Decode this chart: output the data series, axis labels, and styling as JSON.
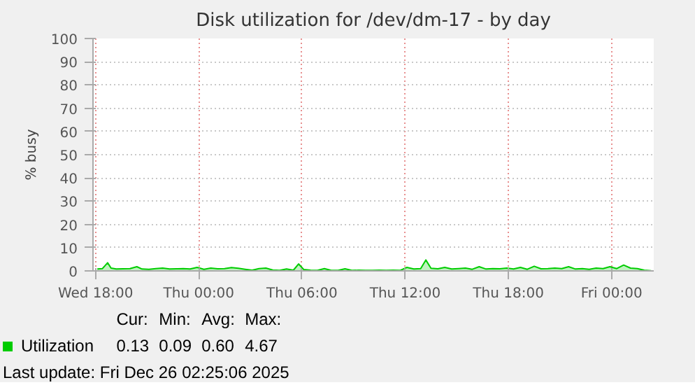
{
  "chart_data": {
    "type": "area",
    "title": "Disk utilization for /dev/dm-17 - by day",
    "ylabel": "% busy",
    "x": [
      "2025-12-24T18:06",
      "2025-12-24T18:24",
      "2025-12-24T18:42",
      "2025-12-24T18:54",
      "2025-12-24T19:12",
      "2025-12-24T19:36",
      "2025-12-24T20:00",
      "2025-12-24T20:24",
      "2025-12-24T20:42",
      "2025-12-24T21:06",
      "2025-12-24T21:30",
      "2025-12-24T21:54",
      "2025-12-24T22:18",
      "2025-12-24T22:42",
      "2025-12-24T23:06",
      "2025-12-24T23:30",
      "2025-12-24T23:54",
      "2025-12-25T00:18",
      "2025-12-25T00:42",
      "2025-12-25T01:06",
      "2025-12-25T01:30",
      "2025-12-25T01:54",
      "2025-12-25T02:18",
      "2025-12-25T02:42",
      "2025-12-25T03:06",
      "2025-12-25T03:30",
      "2025-12-25T03:54",
      "2025-12-25T04:18",
      "2025-12-25T04:42",
      "2025-12-25T05:06",
      "2025-12-25T05:30",
      "2025-12-25T05:48",
      "2025-12-25T06:06",
      "2025-12-25T06:30",
      "2025-12-25T06:54",
      "2025-12-25T07:18",
      "2025-12-25T07:42",
      "2025-12-25T08:06",
      "2025-12-25T08:30",
      "2025-12-25T08:54",
      "2025-12-25T09:18",
      "2025-12-25T09:42",
      "2025-12-25T10:06",
      "2025-12-25T10:30",
      "2025-12-25T10:54",
      "2025-12-25T11:18",
      "2025-12-25T11:42",
      "2025-12-25T12:06",
      "2025-12-25T12:30",
      "2025-12-25T12:54",
      "2025-12-25T13:12",
      "2025-12-25T13:30",
      "2025-12-25T13:54",
      "2025-12-25T14:18",
      "2025-12-25T14:42",
      "2025-12-25T15:06",
      "2025-12-25T15:30",
      "2025-12-25T15:54",
      "2025-12-25T16:18",
      "2025-12-25T16:42",
      "2025-12-25T17:06",
      "2025-12-25T17:30",
      "2025-12-25T17:54",
      "2025-12-25T18:18",
      "2025-12-25T18:42",
      "2025-12-25T19:06",
      "2025-12-25T19:30",
      "2025-12-25T19:54",
      "2025-12-25T20:18",
      "2025-12-25T20:42",
      "2025-12-25T21:06",
      "2025-12-25T21:30",
      "2025-12-25T21:54",
      "2025-12-25T22:18",
      "2025-12-25T22:42",
      "2025-12-25T23:06",
      "2025-12-25T23:30",
      "2025-12-25T23:54",
      "2025-12-26T00:18",
      "2025-12-26T00:42",
      "2025-12-26T01:06",
      "2025-12-26T01:30",
      "2025-12-26T01:54",
      "2025-12-26T02:18"
    ],
    "series": [
      {
        "name": "Utilization",
        "color": "#00cc00",
        "values": [
          0.8,
          1.0,
          3.5,
          1.2,
          0.8,
          0.9,
          1.0,
          1.8,
          0.8,
          0.7,
          1.0,
          1.2,
          0.8,
          0.9,
          1.0,
          0.8,
          1.5,
          0.7,
          1.2,
          0.9,
          1.0,
          1.4,
          1.1,
          0.7,
          0.3,
          1.0,
          1.2,
          0.4,
          0.2,
          0.8,
          0.3,
          3.0,
          0.6,
          0.3,
          0.2,
          1.0,
          0.2,
          0.2,
          0.9,
          0.2,
          0.3,
          0.2,
          0.2,
          0.3,
          0.2,
          0.3,
          0.2,
          1.5,
          0.8,
          1.0,
          4.7,
          1.1,
          0.9,
          1.5,
          0.8,
          1.0,
          1.2,
          0.7,
          1.8,
          0.8,
          1.0,
          0.9,
          1.2,
          0.8,
          1.5,
          0.7,
          2.0,
          0.9,
          1.0,
          1.2,
          1.0,
          1.8,
          0.8,
          1.0,
          0.7,
          1.2,
          1.0,
          1.8,
          1.0,
          2.5,
          1.2,
          1.0,
          0.3,
          0.1
        ]
      }
    ],
    "xlim": [
      "2025-12-24T17:51",
      "2025-12-26T02:27"
    ],
    "xticks": [
      {
        "value": "2025-12-24T18:00",
        "label": "Wed 18:00"
      },
      {
        "value": "2025-12-25T00:00",
        "label": "Thu 00:00"
      },
      {
        "value": "2025-12-25T06:00",
        "label": "Thu 06:00"
      },
      {
        "value": "2025-12-25T12:00",
        "label": "Thu 12:00"
      },
      {
        "value": "2025-12-25T18:00",
        "label": "Thu 18:00"
      },
      {
        "value": "2025-12-26T00:00",
        "label": "Fri 00:00"
      }
    ],
    "ylim": [
      0,
      100
    ],
    "yticks": [
      0,
      10,
      20,
      30,
      40,
      50,
      60,
      70,
      80,
      90,
      100
    ],
    "grid": true,
    "legend": "bottom",
    "annotations": [
      "Cur:",
      "Min:",
      "Avg:",
      "Max:",
      "0.13",
      "0.09",
      "0.60",
      "4.67",
      "Last update: Fri Dec 26 02:25:06 2025"
    ]
  }
}
